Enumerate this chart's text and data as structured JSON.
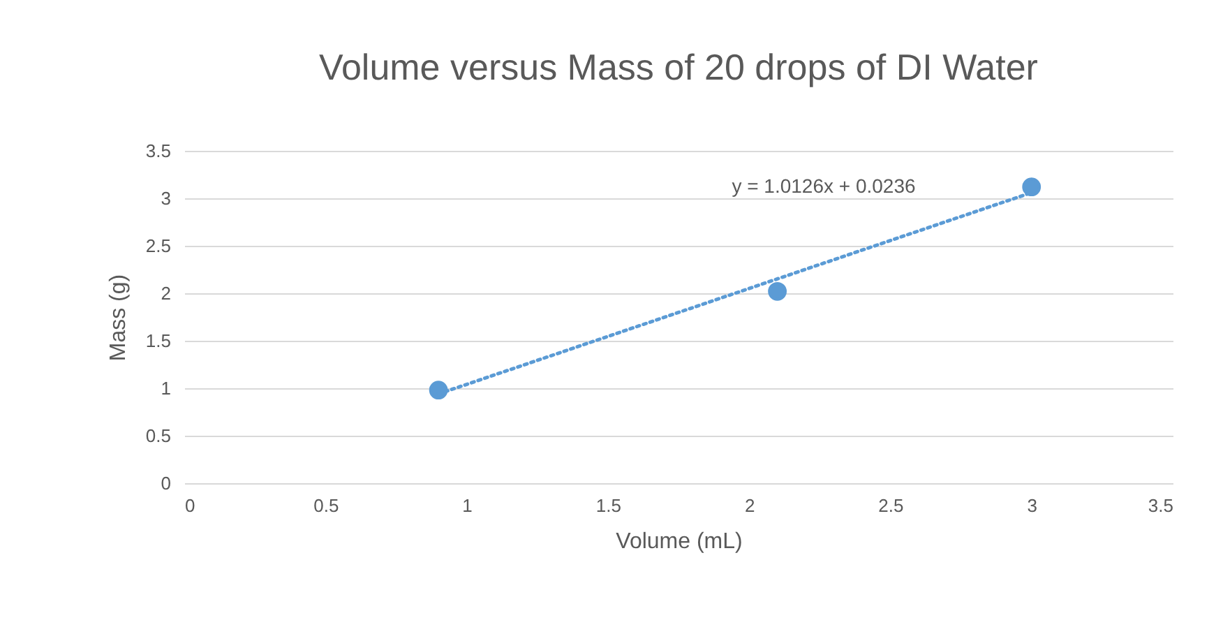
{
  "chart_data": {
    "type": "scatter",
    "title": "Volume versus Mass of 20 drops of DI Water",
    "xlabel": "Volume (mL)",
    "ylabel": "Mass (g)",
    "xlim": [
      0,
      3.5
    ],
    "xticks": [
      0,
      0.5,
      1,
      1.5,
      2,
      2.5,
      3,
      3.5
    ],
    "ylim": [
      0,
      3.5
    ],
    "yticks": [
      0,
      0.5,
      1,
      1.5,
      2,
      2.5,
      3,
      3.5
    ],
    "grid": "y",
    "marker": "circle",
    "series": [
      {
        "color": "#5b9bd5",
        "x": [
          0.9,
          2.1,
          3.0
        ],
        "values": [
          0.98,
          2.02,
          3.12
        ]
      },
      {
        "type": "line",
        "color": "#5b9bd5",
        "line_style": "dotted",
        "marker": "none",
        "x": [
          0.9,
          3.0
        ],
        "values": [
          0.94,
          3.06
        ]
      }
    ],
    "annotations": [
      "y = 1.0126x + 0.0236"
    ]
  }
}
